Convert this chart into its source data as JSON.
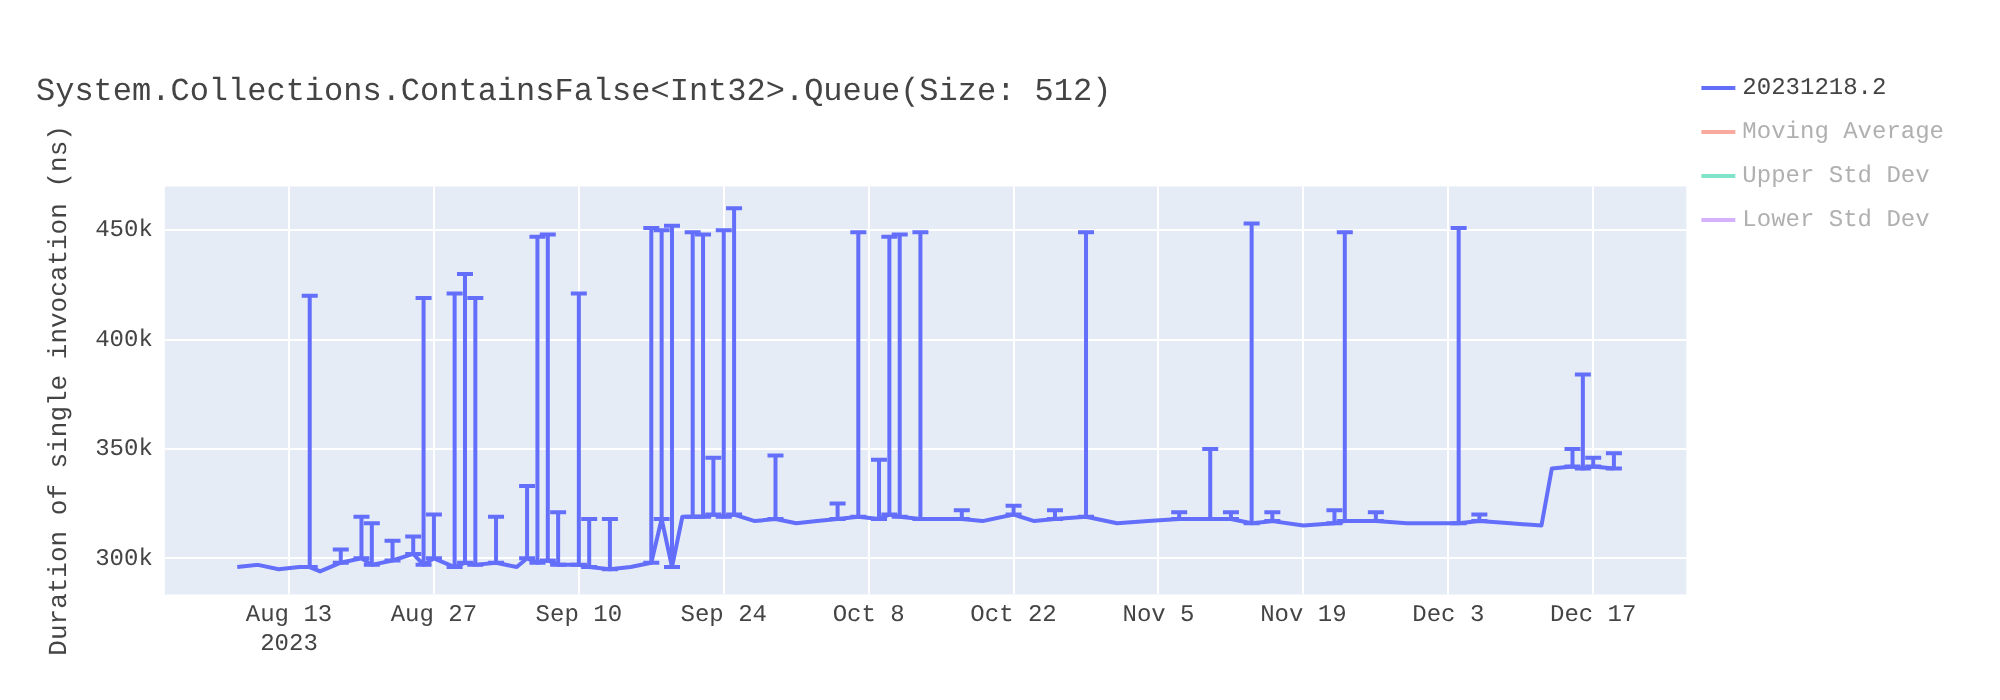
{
  "chart_data": {
    "type": "line",
    "title": "System.Collections.ContainsFalse<Int32>.Queue(Size: 512)",
    "ylabel": "Duration of single invocation (ns)",
    "x": [
      "2023-08-08",
      "2023-08-10",
      "2023-08-12",
      "2023-08-14",
      "2023-08-15",
      "2023-08-16",
      "2023-08-18",
      "2023-08-20",
      "2023-08-21",
      "2023-08-23",
      "2023-08-25",
      "2023-08-26",
      "2023-08-27",
      "2023-08-29",
      "2023-08-30",
      "2023-08-31",
      "2023-09-02",
      "2023-09-04",
      "2023-09-05",
      "2023-09-06",
      "2023-09-07",
      "2023-09-08",
      "2023-09-10",
      "2023-09-11",
      "2023-09-13",
      "2023-09-15",
      "2023-09-17",
      "2023-09-18",
      "2023-09-19",
      "2023-09-20",
      "2023-09-21",
      "2023-09-22",
      "2023-09-23",
      "2023-09-24",
      "2023-09-25",
      "2023-09-27",
      "2023-09-29",
      "2023-10-01",
      "2023-10-03",
      "2023-10-05",
      "2023-10-07",
      "2023-10-09",
      "2023-10-10",
      "2023-10-11",
      "2023-10-13",
      "2023-10-15",
      "2023-10-17",
      "2023-10-19",
      "2023-10-22",
      "2023-10-24",
      "2023-10-26",
      "2023-10-29",
      "2023-11-01",
      "2023-11-04",
      "2023-11-07",
      "2023-11-10",
      "2023-11-12",
      "2023-11-14",
      "2023-11-16",
      "2023-11-19",
      "2023-11-22",
      "2023-11-23",
      "2023-11-26",
      "2023-11-29",
      "2023-12-02",
      "2023-12-04",
      "2023-12-06",
      "2023-12-09",
      "2023-12-12",
      "2023-12-13",
      "2023-12-15",
      "2023-12-16",
      "2023-12-17",
      "2023-12-19"
    ],
    "series": [
      {
        "name": "20231218.2",
        "color": "#636efa",
        "values": [
          296000,
          297000,
          295000,
          296000,
          296000,
          294000,
          298000,
          300000,
          297000,
          299000,
          302000,
          297000,
          300000,
          296000,
          298000,
          297000,
          298000,
          296000,
          300000,
          298000,
          299000,
          297000,
          297000,
          296000,
          295000,
          296000,
          298000,
          318000,
          296000,
          319000,
          319000,
          319000,
          320000,
          319000,
          320000,
          317000,
          318000,
          316000,
          317000,
          318000,
          319000,
          318000,
          320000,
          319000,
          318000,
          318000,
          318000,
          317000,
          320000,
          317000,
          318000,
          319000,
          316000,
          317000,
          318000,
          318000,
          318000,
          316000,
          317000,
          315000,
          316000,
          317000,
          317000,
          316000,
          316000,
          316000,
          317000,
          316000,
          315000,
          341000,
          342000,
          341000,
          342000,
          341000
        ],
        "errors": [
          null,
          null,
          null,
          null,
          [
            296000,
            420000
          ],
          null,
          [
            298000,
            304000
          ],
          [
            300000,
            319000
          ],
          [
            297000,
            316000
          ],
          [
            299000,
            308000
          ],
          [
            302000,
            310000
          ],
          [
            297000,
            419000
          ],
          [
            300000,
            320000
          ],
          [
            296000,
            421000
          ],
          [
            298000,
            430000
          ],
          [
            297000,
            419000
          ],
          [
            298000,
            319000
          ],
          null,
          [
            300000,
            333000
          ],
          [
            298000,
            447000
          ],
          [
            299000,
            448000
          ],
          [
            297000,
            321000
          ],
          [
            297000,
            421000
          ],
          [
            296000,
            318000
          ],
          [
            295000,
            318000
          ],
          null,
          [
            298000,
            451000
          ],
          [
            318000,
            450000
          ],
          [
            296000,
            452000
          ],
          null,
          [
            319000,
            449000
          ],
          [
            319000,
            448000
          ],
          [
            320000,
            346000
          ],
          [
            319000,
            450000
          ],
          [
            320000,
            460000
          ],
          null,
          [
            318000,
            347000
          ],
          null,
          null,
          [
            318000,
            325000
          ],
          [
            319000,
            449000
          ],
          [
            318000,
            345000
          ],
          [
            320000,
            447000
          ],
          [
            319000,
            448000
          ],
          [
            318000,
            449000
          ],
          null,
          [
            318000,
            322000
          ],
          null,
          [
            320000,
            324000
          ],
          null,
          [
            318000,
            322000
          ],
          [
            319000,
            449000
          ],
          null,
          null,
          [
            318000,
            321000
          ],
          [
            318000,
            350000
          ],
          [
            318000,
            321000
          ],
          [
            316000,
            453000
          ],
          [
            317000,
            321000
          ],
          null,
          [
            316000,
            322000
          ],
          [
            317000,
            449000
          ],
          [
            317000,
            321000
          ],
          null,
          null,
          [
            316000,
            451000
          ],
          [
            317000,
            320000
          ],
          null,
          null,
          null,
          [
            342000,
            350000
          ],
          [
            341000,
            384000
          ],
          [
            342000,
            346000
          ],
          [
            341000,
            348000
          ]
        ]
      },
      {
        "name": "Moving Average",
        "color": "#ef553b",
        "values": [
          null,
          null,
          null,
          null,
          null,
          null,
          null,
          null,
          null,
          null,
          null,
          null,
          null,
          null,
          null,
          null,
          null,
          null,
          null,
          null,
          null,
          null,
          null,
          null,
          null,
          null,
          null,
          null,
          null,
          null,
          null,
          null,
          null,
          null,
          null,
          null,
          null,
          null,
          null,
          null,
          null,
          null,
          null,
          null,
          null,
          null,
          null,
          null,
          null,
          null,
          null,
          null,
          null,
          null,
          null,
          null,
          null,
          null,
          null,
          null,
          null,
          null,
          null,
          null,
          null,
          null,
          null,
          null,
          null,
          null,
          null,
          null,
          null,
          null
        ]
      },
      {
        "name": "Upper Std Dev",
        "color": "#00cc96",
        "values": [
          null,
          null,
          null,
          null,
          null,
          null,
          null,
          null,
          null,
          null,
          null,
          null,
          null,
          null,
          null,
          null,
          null,
          null,
          null,
          null,
          null,
          null,
          null,
          null,
          null,
          null,
          null,
          null,
          null,
          null,
          null,
          null,
          null,
          null,
          null,
          null,
          null,
          null,
          null,
          null,
          null,
          null,
          null,
          null,
          null,
          null,
          null,
          null,
          null,
          null,
          null,
          null,
          null,
          null,
          null,
          null,
          null,
          null,
          null,
          null,
          null,
          null,
          null,
          null,
          null,
          null,
          null,
          null,
          null,
          null,
          null,
          null,
          null,
          null
        ]
      },
      {
        "name": "Lower Std Dev",
        "color": "#ab63fa",
        "values": [
          null,
          null,
          null,
          null,
          null,
          null,
          null,
          null,
          null,
          null,
          null,
          null,
          null,
          null,
          null,
          null,
          null,
          null,
          null,
          null,
          null,
          null,
          null,
          null,
          null,
          null,
          null,
          null,
          null,
          null,
          null,
          null,
          null,
          null,
          null,
          null,
          null,
          null,
          null,
          null,
          null,
          null,
          null,
          null,
          null,
          null,
          null,
          null,
          null,
          null,
          null,
          null,
          null,
          null,
          null,
          null,
          null,
          null,
          null,
          null,
          null,
          null,
          null,
          null,
          null,
          null,
          null,
          null,
          null,
          null,
          null,
          null,
          null,
          null
        ]
      }
    ],
    "xlim": [
      "2023-08-01",
      "2023-12-26"
    ],
    "xticks": [
      {
        "value": "2023-08-13",
        "label": "Aug 13\n2023"
      },
      {
        "value": "2023-08-27",
        "label": "Aug 27"
      },
      {
        "value": "2023-09-10",
        "label": "Sep 10"
      },
      {
        "value": "2023-09-24",
        "label": "Sep 24"
      },
      {
        "value": "2023-10-08",
        "label": "Oct 8"
      },
      {
        "value": "2023-10-22",
        "label": "Oct 22"
      },
      {
        "value": "2023-11-05",
        "label": "Nov 5"
      },
      {
        "value": "2023-11-19",
        "label": "Nov 19"
      },
      {
        "value": "2023-12-03",
        "label": "Dec 3"
      },
      {
        "value": "2023-12-17",
        "label": "Dec 17"
      }
    ],
    "ylim": [
      283500,
      470000
    ],
    "yticks": [
      {
        "value": 300000,
        "label": "300k"
      },
      {
        "value": 350000,
        "label": "350k"
      },
      {
        "value": 400000,
        "label": "400k"
      },
      {
        "value": 450000,
        "label": "450k"
      }
    ],
    "grid": true,
    "legend": "top right",
    "marker": "none",
    "line_style": "solid"
  }
}
